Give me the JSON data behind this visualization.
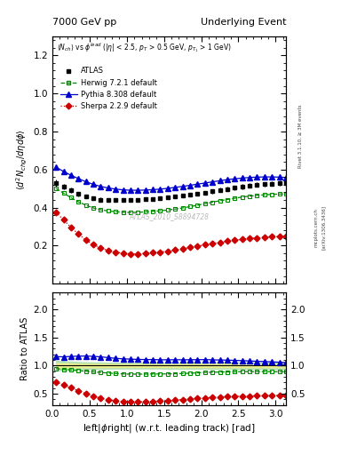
{
  "title_left": "7000 GeV pp",
  "title_right": "Underlying Event",
  "ylabel_main": "$\\langle d^2 N_{chg}/d\\eta d\\phi \\rangle$",
  "ylabel_ratio": "Ratio to ATLAS",
  "xlabel": "left|$\\phi$right| (w.r.t. leading track) [rad]",
  "subtitle": "$\\langle N_{ch}\\rangle$ vs $\\phi^{lead}$ (|$\\eta$| < 2.5, $p_T$ > 0.5 GeV, $p_{T_1}$ > 1 GeV)",
  "watermark": "ATLAS_2010_S8894728",
  "rivet_label": "Rivet 3.1.10, ≥ 3M events",
  "arxiv_label": "[arXiv:1306.3436]",
  "mcplots_label": "mcplots.cern.ch",
  "ylim_main": [
    0.0,
    1.3
  ],
  "ylim_ratio": [
    0.3,
    2.3
  ],
  "xlim": [
    0.0,
    3.14159
  ],
  "yticks_main": [
    0.2,
    0.4,
    0.6,
    0.8,
    1.0,
    1.2
  ],
  "yticks_ratio": [
    0.5,
    1.0,
    1.5,
    2.0
  ],
  "atlas_color": "#000000",
  "herwig_color": "#008800",
  "pythia_color": "#0000cc",
  "sherpa_color": "#cc0000",
  "atlas_data_x": [
    0.05,
    0.15,
    0.25,
    0.35,
    0.45,
    0.55,
    0.65,
    0.75,
    0.85,
    0.95,
    1.05,
    1.15,
    1.25,
    1.35,
    1.45,
    1.55,
    1.65,
    1.75,
    1.85,
    1.95,
    2.05,
    2.15,
    2.25,
    2.35,
    2.45,
    2.55,
    2.65,
    2.75,
    2.85,
    2.95,
    3.05,
    3.14
  ],
  "atlas_data_y": [
    0.528,
    0.51,
    0.49,
    0.472,
    0.458,
    0.448,
    0.442,
    0.44,
    0.44,
    0.44,
    0.44,
    0.442,
    0.444,
    0.446,
    0.45,
    0.454,
    0.458,
    0.463,
    0.468,
    0.473,
    0.478,
    0.485,
    0.492,
    0.498,
    0.504,
    0.51,
    0.515,
    0.52,
    0.523,
    0.526,
    0.528,
    0.53
  ],
  "atlas_err": [
    0.018,
    0.016,
    0.014,
    0.012,
    0.011,
    0.01,
    0.01,
    0.009,
    0.009,
    0.009,
    0.009,
    0.009,
    0.009,
    0.009,
    0.009,
    0.01,
    0.01,
    0.01,
    0.01,
    0.01,
    0.01,
    0.011,
    0.011,
    0.011,
    0.011,
    0.012,
    0.012,
    0.012,
    0.012,
    0.013,
    0.013,
    0.014
  ],
  "herwig_x": [
    0.05,
    0.15,
    0.25,
    0.35,
    0.45,
    0.55,
    0.65,
    0.75,
    0.85,
    0.95,
    1.05,
    1.15,
    1.25,
    1.35,
    1.45,
    1.55,
    1.65,
    1.75,
    1.85,
    1.95,
    2.05,
    2.15,
    2.25,
    2.35,
    2.45,
    2.55,
    2.65,
    2.75,
    2.85,
    2.95,
    3.05,
    3.14
  ],
  "herwig_y": [
    0.5,
    0.476,
    0.452,
    0.43,
    0.412,
    0.398,
    0.388,
    0.382,
    0.378,
    0.375,
    0.374,
    0.375,
    0.377,
    0.38,
    0.383,
    0.387,
    0.392,
    0.398,
    0.405,
    0.412,
    0.42,
    0.428,
    0.436,
    0.442,
    0.449,
    0.455,
    0.46,
    0.464,
    0.467,
    0.469,
    0.471,
    0.472
  ],
  "pythia_x": [
    0.05,
    0.15,
    0.25,
    0.35,
    0.45,
    0.55,
    0.65,
    0.75,
    0.85,
    0.95,
    1.05,
    1.15,
    1.25,
    1.35,
    1.45,
    1.55,
    1.65,
    1.75,
    1.85,
    1.95,
    2.05,
    2.15,
    2.25,
    2.35,
    2.45,
    2.55,
    2.65,
    2.75,
    2.85,
    2.95,
    3.05,
    3.14
  ],
  "pythia_y": [
    0.612,
    0.59,
    0.57,
    0.552,
    0.536,
    0.522,
    0.511,
    0.503,
    0.497,
    0.493,
    0.491,
    0.491,
    0.492,
    0.494,
    0.497,
    0.501,
    0.506,
    0.511,
    0.517,
    0.523,
    0.529,
    0.535,
    0.541,
    0.547,
    0.551,
    0.555,
    0.558,
    0.56,
    0.561,
    0.561,
    0.56,
    0.558
  ],
  "sherpa_x": [
    0.05,
    0.15,
    0.25,
    0.35,
    0.45,
    0.55,
    0.65,
    0.75,
    0.85,
    0.95,
    1.05,
    1.15,
    1.25,
    1.35,
    1.45,
    1.55,
    1.65,
    1.75,
    1.85,
    1.95,
    2.05,
    2.15,
    2.25,
    2.35,
    2.45,
    2.55,
    2.65,
    2.75,
    2.85,
    2.95,
    3.05,
    3.14
  ],
  "sherpa_y": [
    0.375,
    0.335,
    0.296,
    0.261,
    0.229,
    0.205,
    0.187,
    0.174,
    0.165,
    0.16,
    0.157,
    0.157,
    0.159,
    0.162,
    0.166,
    0.171,
    0.177,
    0.183,
    0.19,
    0.197,
    0.204,
    0.211,
    0.217,
    0.223,
    0.228,
    0.233,
    0.237,
    0.24,
    0.243,
    0.246,
    0.248,
    0.25
  ]
}
